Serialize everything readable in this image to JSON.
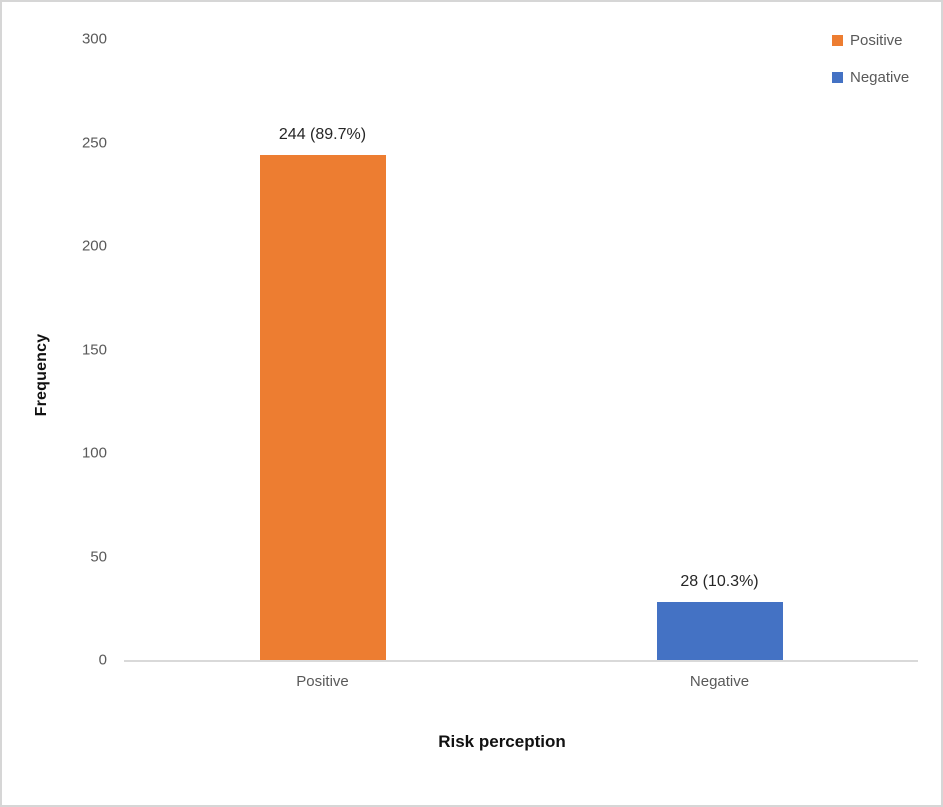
{
  "chart_data": {
    "type": "bar",
    "title": "",
    "categories": [
      "Positive",
      "Negative"
    ],
    "series": [
      {
        "name": "Positive",
        "value": 244,
        "label": "244 (89.7%)",
        "color": "#ED7D31"
      },
      {
        "name": "Negative",
        "value": 28,
        "label": "28 (10.3%)",
        "color": "#4472C4"
      }
    ],
    "xlabel": "Risk perception",
    "ylabel": "Frequency",
    "ylim": [
      0,
      300
    ],
    "yticks": [
      0,
      50,
      100,
      150,
      200,
      250,
      300
    ],
    "grid": false,
    "legend_position": "top-right",
    "legend": [
      {
        "label": "Positive",
        "color": "#ED7D31"
      },
      {
        "label": "Negative",
        "color": "#4472C4"
      }
    ]
  },
  "colors": {
    "axis_line": "#D9D9D9",
    "tick_text": "#595959",
    "data_label_text": "#262626",
    "frame_border": "#D6D6D6",
    "background": "#FFFFFF"
  }
}
